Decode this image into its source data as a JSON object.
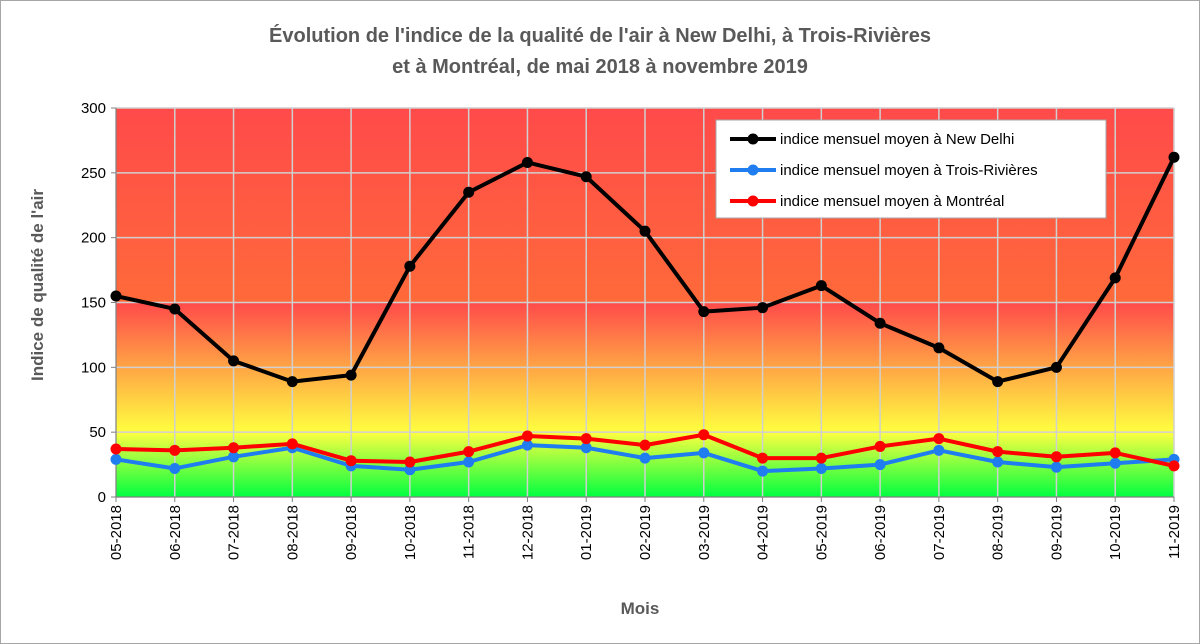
{
  "chart_data": {
    "type": "line",
    "title_line1": "Évolution de l'indice de la qualité de l'air à New Delhi, à Trois-Rivières",
    "title_line2": "et à Montréal, de mai 2018 à novembre 2019",
    "xlabel": "Mois",
    "ylabel": "Indice de qualité de l'air",
    "ylim": [
      0,
      300
    ],
    "yticks": [
      "0",
      "50",
      "100",
      "150",
      "200",
      "250",
      "300"
    ],
    "grid": true,
    "legend_position": "top-right",
    "categories": [
      "05-2018",
      "06-2018",
      "07-2018",
      "08-2018",
      "09-2018",
      "10-2018",
      "11-2018",
      "12-2018",
      "01-2019",
      "02-2019",
      "03-2019",
      "04-2019",
      "05-2019",
      "06-2019",
      "07-2019",
      "08-2019",
      "09-2019",
      "10-2019",
      "11-2019"
    ],
    "series": [
      {
        "name": "indice mensuel moyen à New Delhi",
        "color": "#000000",
        "values": [
          155,
          145,
          105,
          89,
          94,
          178,
          235,
          258,
          247,
          205,
          143,
          146,
          163,
          134,
          115,
          89,
          100,
          169,
          262
        ]
      },
      {
        "name": "indice mensuel moyen à Trois-Rivières",
        "color": "#1f7df0",
        "values": [
          29,
          22,
          31,
          38,
          24,
          21,
          27,
          40,
          38,
          30,
          34,
          20,
          22,
          25,
          36,
          27,
          23,
          26,
          29
        ]
      },
      {
        "name": "indice mensuel moyen à Montréal",
        "color": "#ff0000",
        "values": [
          37,
          36,
          38,
          41,
          28,
          27,
          35,
          47,
          45,
          40,
          48,
          30,
          30,
          39,
          45,
          35,
          31,
          34,
          24
        ]
      }
    ],
    "background_bands": [
      {
        "from": 0,
        "to": 50,
        "top_color": "#ffff40",
        "bottom_color": "#00ff40"
      },
      {
        "from": 50,
        "to": 150,
        "top_color": "#ff6a3a",
        "bottom_color": "#ffff40"
      },
      {
        "from": 150,
        "to": 300,
        "top_color": "#ff4a4a",
        "bottom_color": "#ff4a4a"
      }
    ]
  }
}
